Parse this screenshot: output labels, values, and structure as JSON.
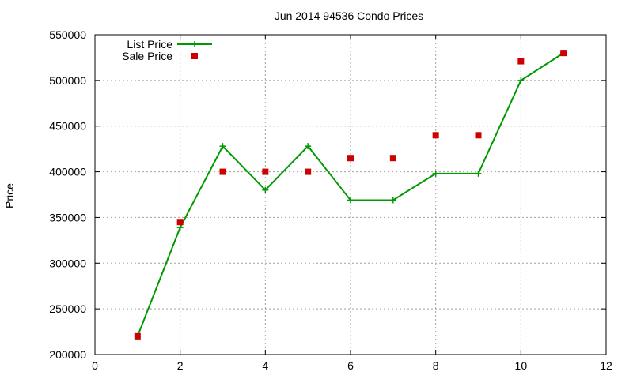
{
  "chart_data": {
    "type": "line",
    "title": "Jun 2014 94536 Condo Prices",
    "xlabel": "",
    "ylabel": "Price",
    "xlim": [
      0,
      12
    ],
    "ylim": [
      200000,
      550000
    ],
    "x_ticks": [
      0,
      2,
      4,
      6,
      8,
      10,
      12
    ],
    "y_ticks": [
      200000,
      250000,
      300000,
      350000,
      400000,
      450000,
      500000,
      550000
    ],
    "grid": true,
    "legend_position": "top-left",
    "series": [
      {
        "name": "List Price",
        "style": "line-points",
        "color": "#009900",
        "marker": "plus",
        "x": [
          1,
          2,
          3,
          4,
          5,
          6,
          7,
          8,
          9,
          10,
          11
        ],
        "values": [
          220000,
          339000,
          428000,
          380000,
          428000,
          369000,
          369000,
          398000,
          398000,
          500000,
          530000
        ]
      },
      {
        "name": "Sale Price",
        "style": "points",
        "color": "#cc0000",
        "marker": "square",
        "x": [
          1,
          2,
          3,
          4,
          5,
          6,
          7,
          8,
          9,
          10,
          11
        ],
        "values": [
          220000,
          345000,
          400000,
          400000,
          400000,
          415000,
          415000,
          440000,
          440000,
          521000,
          530000
        ]
      }
    ]
  }
}
